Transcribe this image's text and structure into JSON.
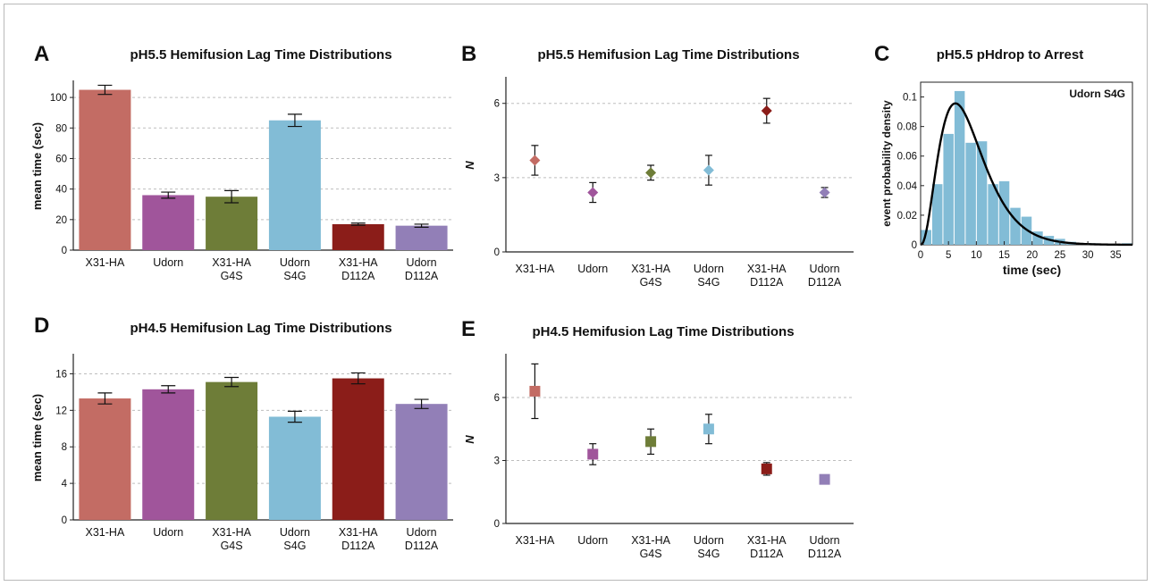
{
  "colors": {
    "X31-HA": "#c36c64",
    "Udorn": "#a0559b",
    "X31-HA G4S": "#6e7d38",
    "Udorn S4G": "#82bcd6",
    "X31-HA D112A": "#8b1d19",
    "Udorn D112A": "#927fb7"
  },
  "chart_data": [
    {
      "panel": "A",
      "type": "bar",
      "title": "pH5.5 Hemifusion Lag Time Distributions",
      "ylabel": "mean time (sec)",
      "xlabel": "",
      "ylim": [
        0,
        110
      ],
      "yticks": [
        0,
        20,
        40,
        60,
        80,
        100
      ],
      "grid": true,
      "categories": [
        [
          "X31-HA"
        ],
        [
          "Udorn"
        ],
        [
          "X31-HA",
          "G4S"
        ],
        [
          "Udorn",
          "S4G"
        ],
        [
          "X31-HA",
          "D112A"
        ],
        [
          "Udorn",
          "D112A"
        ]
      ],
      "values": [
        105,
        36,
        35,
        85,
        17,
        16
      ],
      "errors": [
        3,
        2,
        4,
        4,
        0.7,
        1
      ]
    },
    {
      "panel": "B",
      "type": "scatter",
      "marker": "diamond",
      "title": "pH5.5 Hemifusion Lag Time Distributions",
      "ylabel": "N",
      "xlabel": "",
      "ylim": [
        0,
        7
      ],
      "yticks": [
        0,
        3,
        6
      ],
      "grid": true,
      "categories": [
        [
          "X31-HA"
        ],
        [
          "Udorn"
        ],
        [
          "X31-HA",
          "G4S"
        ],
        [
          "Udorn",
          "S4G"
        ],
        [
          "X31-HA",
          "D112A"
        ],
        [
          "Udorn",
          "D112A"
        ]
      ],
      "values": [
        3.7,
        2.4,
        3.2,
        3.3,
        5.7,
        2.4
      ],
      "errors": [
        0.6,
        0.4,
        0.3,
        0.6,
        0.5,
        0.2
      ]
    },
    {
      "panel": "C",
      "type": "bar",
      "subtype": "histogram-with-fit",
      "title": "pH5.5 pHdrop to Arrest",
      "ylabel": "event probability density",
      "xlabel": "time (sec)",
      "annotation": "Udorn S4G",
      "xlim": [
        0,
        38
      ],
      "ylim": [
        0,
        0.11
      ],
      "xticks": [
        0,
        5,
        10,
        15,
        20,
        25,
        30,
        35
      ],
      "yticks": [
        0,
        0.02,
        0.04,
        0.06,
        0.08,
        0.1
      ],
      "ytick_labels": [
        "0",
        "0.02",
        "0.04",
        "0.06",
        "0.08",
        "0.1"
      ],
      "bin_width": 2,
      "bin_starts": [
        0,
        2,
        4,
        6,
        8,
        10,
        12,
        14,
        16,
        18,
        20,
        22,
        24,
        26,
        28,
        30,
        32,
        34,
        36
      ],
      "values": [
        0.01,
        0.041,
        0.075,
        0.104,
        0.069,
        0.07,
        0.041,
        0.043,
        0.025,
        0.019,
        0.009,
        0.006,
        0.004,
        0.002,
        0.001,
        0.001,
        0.0005,
        0.0005,
        0.001
      ],
      "fit_curve": {
        "type": "gamma",
        "shape": 3.4,
        "scale": 2.6
      }
    },
    {
      "panel": "D",
      "type": "bar",
      "title": "pH4.5 Hemifusion Lag Time Distributions",
      "ylabel": "mean time (sec)",
      "xlabel": "",
      "ylim": [
        0,
        18
      ],
      "yticks": [
        0,
        4,
        8,
        12,
        16
      ],
      "grid": true,
      "categories": [
        [
          "X31-HA"
        ],
        [
          "Udorn"
        ],
        [
          "X31-HA",
          "G4S"
        ],
        [
          "Udorn",
          "S4G"
        ],
        [
          "X31-HA",
          "D112A"
        ],
        [
          "Udorn",
          "D112A"
        ]
      ],
      "values": [
        13.3,
        14.3,
        15.1,
        11.3,
        15.5,
        12.7
      ],
      "errors": [
        0.6,
        0.4,
        0.5,
        0.6,
        0.6,
        0.5
      ]
    },
    {
      "panel": "E",
      "type": "scatter",
      "marker": "square",
      "title": "pH4.5 Hemifusion Lag Time Distributions",
      "ylabel": "N",
      "xlabel": "",
      "ylim": [
        0,
        8
      ],
      "yticks": [
        0,
        3,
        6
      ],
      "grid": true,
      "categories": [
        [
          "X31-HA"
        ],
        [
          "Udorn"
        ],
        [
          "X31-HA",
          "G4S"
        ],
        [
          "Udorn",
          "S4G"
        ],
        [
          "X31-HA",
          "D112A"
        ],
        [
          "Udorn",
          "D112A"
        ]
      ],
      "values": [
        6.3,
        3.3,
        3.9,
        4.5,
        2.6,
        2.1
      ],
      "errors": [
        1.3,
        0.5,
        0.6,
        0.7,
        0.3,
        0.2
      ]
    }
  ]
}
